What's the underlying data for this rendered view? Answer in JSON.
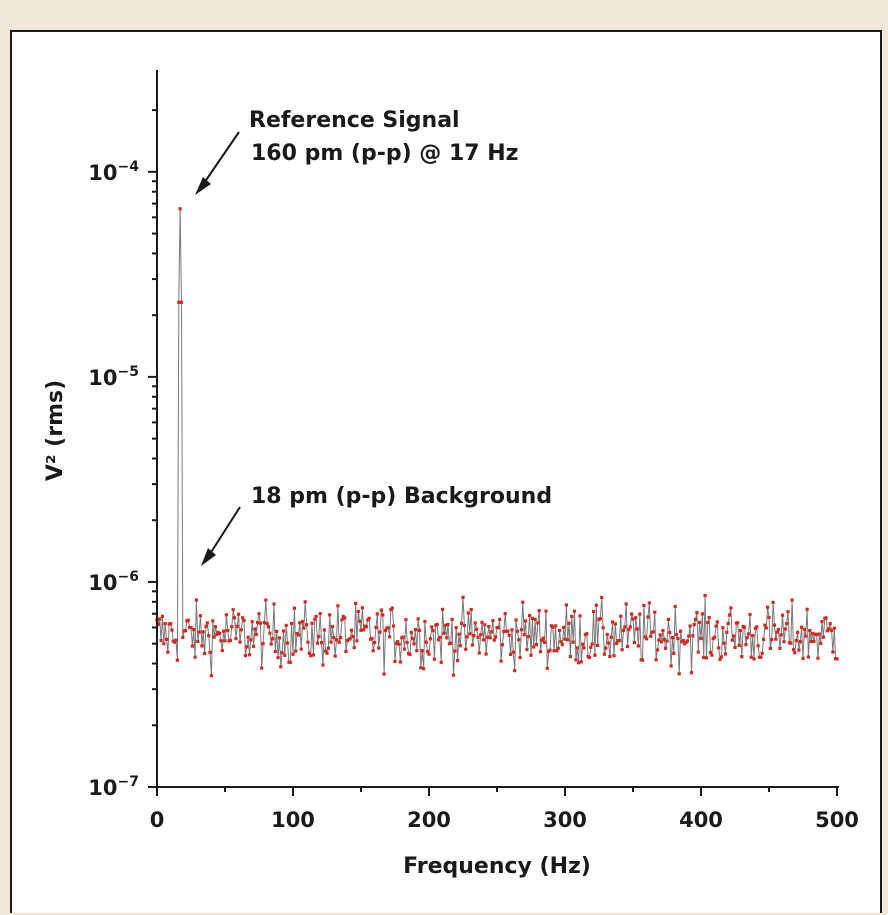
{
  "chart_data": {
    "type": "line",
    "title": "",
    "xlabel": "Frequency (Hz)",
    "ylabel": "V² (rms)",
    "xlim": [
      0,
      500
    ],
    "ylim": [
      1e-07,
      0.0003
    ],
    "yscale": "log",
    "grid": false,
    "legend": "none",
    "x_ticks": [
      0,
      100,
      200,
      300,
      400,
      500
    ],
    "x_tick_labels": [
      "0",
      "100",
      "200",
      "300",
      "400",
      "500"
    ],
    "y_ticks": [
      1e-07,
      1e-06,
      1e-05,
      0.0001
    ],
    "y_tick_labels": [
      {
        "base": "10",
        "exp": "−7"
      },
      {
        "base": "10",
        "exp": "−6"
      },
      {
        "base": "10",
        "exp": "−5"
      },
      {
        "base": "10",
        "exp": "−4"
      }
    ],
    "series": [
      {
        "marker_color": "#d42a22",
        "line_color": "#7a7a7a",
        "peak": {
          "x": 17,
          "y": 6.6e-05
        },
        "x_start": 0,
        "x_end": 500,
        "x_step": 1,
        "noise_median": 5.5e-07,
        "noise_min": 2.2e-07,
        "noise_max": 1.08e-06
      }
    ],
    "annotations": [
      {
        "lines": [
          "Reference Signal",
          "160 pm (p-p) @ 17 Hz"
        ],
        "points_to": {
          "x": 17,
          "y": 6.6e-05
        }
      },
      {
        "lines": [
          "18 pm (p-p) Background"
        ],
        "points_to": {
          "x": 30,
          "y": 1e-06
        }
      }
    ]
  }
}
